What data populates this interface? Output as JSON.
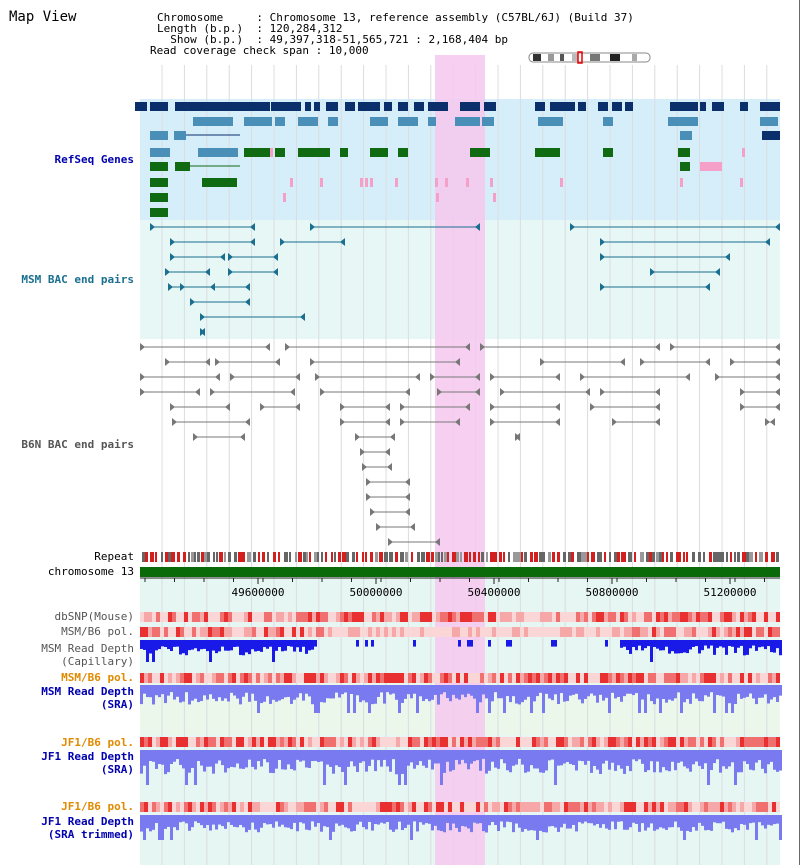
{
  "header": {
    "title": "Map View",
    "chromosome_label": "Chromosome",
    "chromosome_value": "Chromosome 13, reference assembly (C57BL/6J) (Build 37)",
    "length_label": "Length (b.p.)",
    "length_value": "120,284,312",
    "show_label": "Show (b.p.)",
    "show_value": "49,397,318-51,565,721 : 2,168,404 bp",
    "coverage_label": "Read coverage check span",
    "coverage_value": "10,000",
    "sep": " : "
  },
  "tracks": {
    "refseq": "RefSeq Genes",
    "msm_bac": "MSM BAC end pairs",
    "b6n_bac": "B6N BAC end pairs",
    "repeat": "Repeat",
    "chromosome": "chromosome 13",
    "dbsnp": "dbSNP(Mouse)",
    "msm_pol_cap": "MSM/B6 pol.",
    "msm_depth_cap_1": "MSM Read Depth",
    "msm_depth_cap_2": "(Capillary)",
    "msm_pol_sra": "MSM/B6 pol.",
    "msm_depth_sra_1": "MSM Read Depth",
    "msm_depth_sra_2": "(SRA)",
    "jf1_pol_sra": "JF1/B6 pol.",
    "jf1_depth_sra_1": "JF1 Read Depth",
    "jf1_depth_sra_2": "(SRA)",
    "jf1_pol_trim": "JF1/B6 pol.",
    "jf1_depth_trim_1": "JF1 Read Depth",
    "jf1_depth_trim_2": "(SRA trimmed)"
  },
  "axis_ticks": [
    "49600000",
    "50000000",
    "50400000",
    "50800000",
    "51200000"
  ],
  "colors": {
    "refseq_dark": "#0b2f6b",
    "refseq_mid": "#4a8fb8",
    "refseq_green": "#0f6a12",
    "refseq_pink": "#f4a0c8",
    "msm_bac": "#1a6f8f",
    "b6n_bac": "#777777",
    "chromosome_bar": "#0a6a0a",
    "highlight": "#f6c8ee",
    "depth_capillary": "#1a1ae8",
    "depth_sra": "#7a7af0",
    "label_blue": "#0000b0",
    "label_orange": "#e08a00"
  }
}
